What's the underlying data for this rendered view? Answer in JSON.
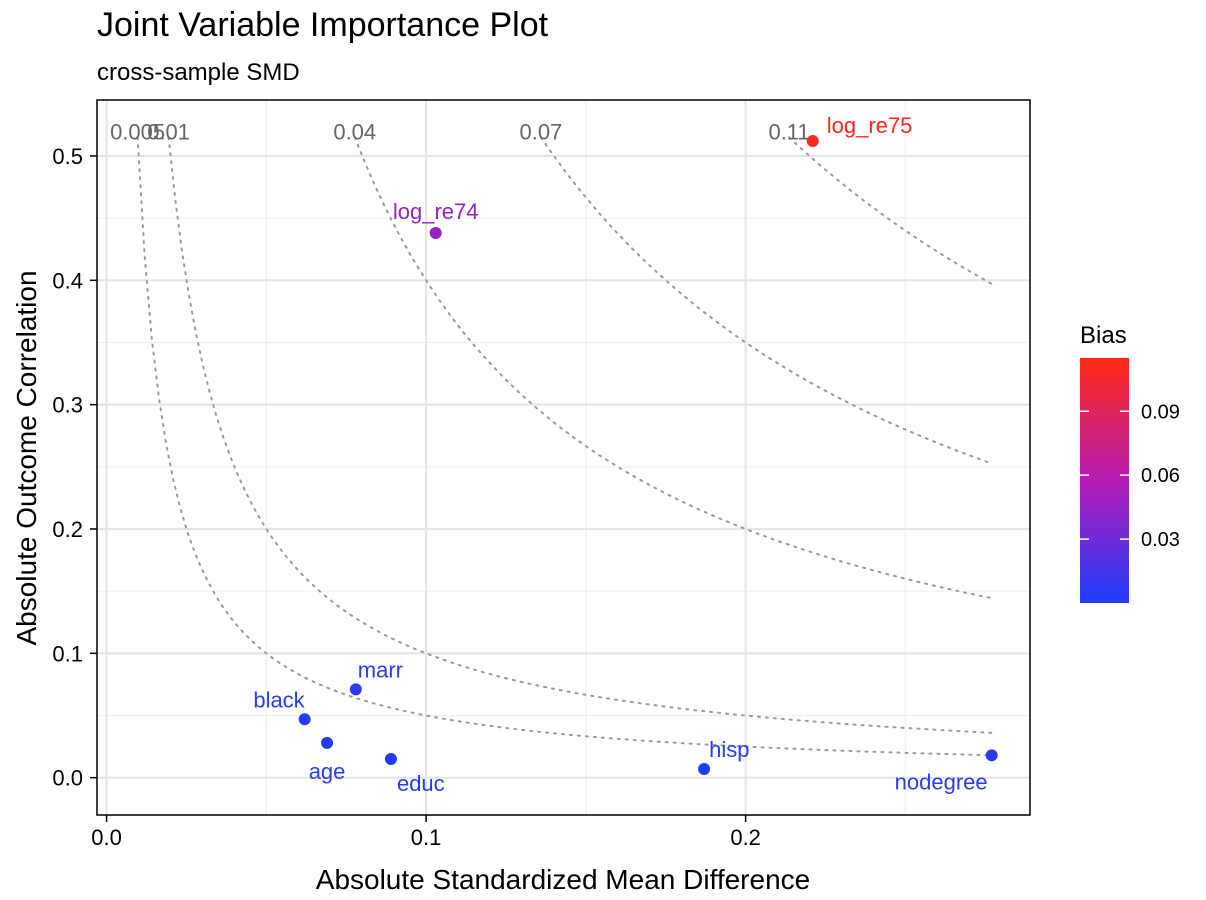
{
  "chart_data": {
    "type": "scatter",
    "title": "Joint Variable Importance Plot",
    "subtitle": "cross-sample SMD",
    "xlabel": "Absolute Standardized Mean Difference",
    "ylabel": "Absolute Outcome Correlation",
    "xlim": [
      -0.003,
      0.289
    ],
    "ylim": [
      -0.03,
      0.545
    ],
    "x_ticks": [
      0.0,
      0.1,
      0.2
    ],
    "x_tick_labels": [
      "0.0",
      "0.1",
      "0.2"
    ],
    "y_ticks": [
      0.0,
      0.1,
      0.2,
      0.3,
      0.4,
      0.5
    ],
    "y_tick_labels": [
      "0.0",
      "0.1",
      "0.2",
      "0.3",
      "0.4",
      "0.5"
    ],
    "grid": true,
    "contours": [
      {
        "level": 0.005,
        "label": "0.005"
      },
      {
        "level": 0.01,
        "label": "0.01"
      },
      {
        "level": 0.04,
        "label": "0.04"
      },
      {
        "level": 0.07,
        "label": "0.07"
      },
      {
        "level": 0.11,
        "label": "0.11"
      }
    ],
    "points": [
      {
        "label": "log_re75",
        "x": 0.221,
        "y": 0.512,
        "bias": 0.113
      },
      {
        "label": "log_re74",
        "x": 0.103,
        "y": 0.438,
        "bias": 0.045
      },
      {
        "label": "marr",
        "x": 0.078,
        "y": 0.071,
        "bias": 0.0055
      },
      {
        "label": "black",
        "x": 0.062,
        "y": 0.047,
        "bias": 0.003
      },
      {
        "label": "age",
        "x": 0.069,
        "y": 0.028,
        "bias": 0.002
      },
      {
        "label": "educ",
        "x": 0.089,
        "y": 0.015,
        "bias": 0.0013
      },
      {
        "label": "hisp",
        "x": 0.187,
        "y": 0.007,
        "bias": 0.0013
      },
      {
        "label": "nodegree",
        "x": 0.277,
        "y": 0.018,
        "bias": 0.005
      }
    ],
    "legend": {
      "title": "Bias",
      "position": "right",
      "range": [
        0.0,
        0.115
      ],
      "ticks": [
        0.03,
        0.06,
        0.09
      ],
      "tick_labels": [
        "0.03",
        "0.06",
        "0.09"
      ],
      "low_color": "#1f3dff",
      "mid_color": "#b41cb4",
      "high_color": "#ff2a14"
    }
  }
}
